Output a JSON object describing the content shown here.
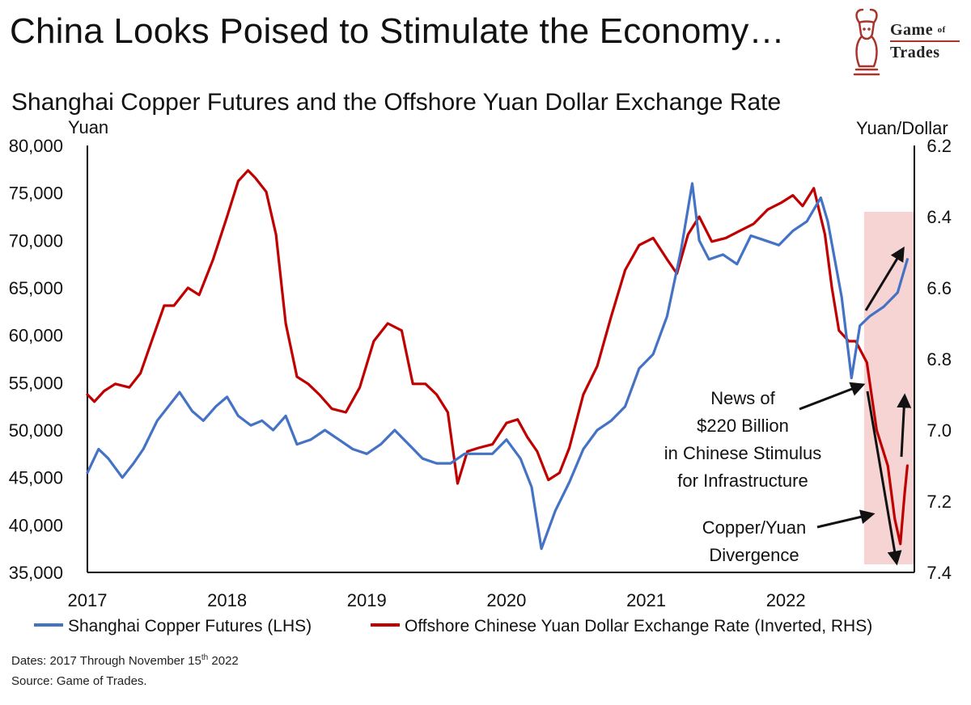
{
  "header": {
    "title": "China Looks Poised to Stimulate the Economy…",
    "logo_line1": "Game",
    "logo_of": "of",
    "logo_line2": "Trades"
  },
  "chart_data": {
    "type": "line",
    "title": "Shanghai Copper Futures and the Offshore Yuan Dollar Exchange Rate",
    "left_axis": {
      "label": "Yuan",
      "range": [
        35000,
        80000
      ],
      "ticks": [
        "80,000",
        "75,000",
        "70,000",
        "65,000",
        "60,000",
        "55,000",
        "50,000",
        "45,000",
        "40,000",
        "35,000"
      ]
    },
    "right_axis": {
      "label": "Yuan/Dollar",
      "range": [
        6.2,
        7.4
      ],
      "inverted": true,
      "ticks": [
        "6.2",
        "6.4",
        "6.6",
        "6.8",
        "7.0",
        "7.2",
        "7.4"
      ]
    },
    "x_axis": {
      "range": [
        2017.0,
        2022.92
      ],
      "ticks": [
        "2017",
        "2018",
        "2019",
        "2020",
        "2021",
        "2022"
      ]
    },
    "grid": false,
    "legend_position": "bottom",
    "series": [
      {
        "name": "Shanghai Copper Futures (LHS)",
        "axis": "left",
        "color": "#4472c4",
        "x": [
          2017.0,
          2017.08,
          2017.15,
          2017.25,
          2017.33,
          2017.4,
          2017.5,
          2017.58,
          2017.66,
          2017.75,
          2017.83,
          2017.92,
          2018.0,
          2018.08,
          2018.17,
          2018.25,
          2018.33,
          2018.42,
          2018.5,
          2018.6,
          2018.7,
          2018.8,
          2018.9,
          2019.0,
          2019.1,
          2019.2,
          2019.3,
          2019.4,
          2019.5,
          2019.6,
          2019.7,
          2019.8,
          2019.9,
          2020.0,
          2020.1,
          2020.18,
          2020.25,
          2020.35,
          2020.45,
          2020.55,
          2020.65,
          2020.75,
          2020.85,
          2020.95,
          2021.05,
          2021.15,
          2021.25,
          2021.33,
          2021.38,
          2021.45,
          2021.55,
          2021.65,
          2021.75,
          2021.85,
          2021.95,
          2022.05,
          2022.15,
          2022.25,
          2022.3,
          2022.4,
          2022.47,
          2022.53,
          2022.6,
          2022.7,
          2022.8,
          2022.87
        ],
        "values": [
          45500,
          48000,
          47000,
          45000,
          46500,
          48000,
          51000,
          52500,
          54000,
          52000,
          51000,
          52500,
          53500,
          51500,
          50500,
          51000,
          50000,
          51500,
          48500,
          49000,
          50000,
          49000,
          48000,
          47500,
          48500,
          50000,
          48500,
          47000,
          46500,
          46500,
          47500,
          47500,
          47500,
          49000,
          47000,
          44000,
          37500,
          41500,
          44500,
          48000,
          50000,
          51000,
          52500,
          56500,
          58000,
          62000,
          69000,
          76000,
          70000,
          68000,
          68500,
          67500,
          70500,
          70000,
          69500,
          71000,
          72000,
          74500,
          72000,
          64000,
          55500,
          61000,
          62000,
          63000,
          64500,
          68000
        ]
      },
      {
        "name": "Offshore Chinese Yuan Dollar Exchange Rate (Inverted, RHS)",
        "axis": "right",
        "color": "#c00000",
        "x": [
          2017.0,
          2017.05,
          2017.12,
          2017.2,
          2017.3,
          2017.38,
          2017.46,
          2017.55,
          2017.62,
          2017.72,
          2017.8,
          2017.9,
          2018.0,
          2018.08,
          2018.15,
          2018.2,
          2018.28,
          2018.35,
          2018.42,
          2018.5,
          2018.58,
          2018.66,
          2018.75,
          2018.85,
          2018.95,
          2019.05,
          2019.15,
          2019.25,
          2019.33,
          2019.42,
          2019.5,
          2019.58,
          2019.65,
          2019.72,
          2019.8,
          2019.9,
          2020.0,
          2020.08,
          2020.15,
          2020.22,
          2020.3,
          2020.38,
          2020.45,
          2020.55,
          2020.65,
          2020.75,
          2020.85,
          2020.95,
          2021.05,
          2021.15,
          2021.22,
          2021.3,
          2021.38,
          2021.47,
          2021.57,
          2021.67,
          2021.77,
          2021.87,
          2021.97,
          2022.05,
          2022.12,
          2022.2,
          2022.28,
          2022.33,
          2022.38,
          2022.45,
          2022.5,
          2022.58,
          2022.65,
          2022.73,
          2022.78,
          2022.82,
          2022.85,
          2022.87
        ],
        "values": [
          6.9,
          6.92,
          6.89,
          6.87,
          6.88,
          6.84,
          6.75,
          6.65,
          6.65,
          6.6,
          6.62,
          6.52,
          6.4,
          6.3,
          6.27,
          6.29,
          6.33,
          6.45,
          6.7,
          6.85,
          6.87,
          6.9,
          6.94,
          6.95,
          6.88,
          6.75,
          6.7,
          6.72,
          6.87,
          6.87,
          6.9,
          6.95,
          7.15,
          7.06,
          7.05,
          7.04,
          6.98,
          6.97,
          7.02,
          7.06,
          7.14,
          7.12,
          7.05,
          6.9,
          6.82,
          6.68,
          6.55,
          6.48,
          6.46,
          6.52,
          6.56,
          6.45,
          6.4,
          6.47,
          6.46,
          6.44,
          6.42,
          6.38,
          6.36,
          6.34,
          6.37,
          6.32,
          6.45,
          6.6,
          6.72,
          6.75,
          6.75,
          6.81,
          7.0,
          7.1,
          7.25,
          7.32,
          7.18,
          7.1
        ]
      }
    ],
    "annotations": [
      {
        "id": "stimulus",
        "lines": [
          "News of",
          "$220 Billion",
          "in Chinese Stimulus",
          "for Infrastructure"
        ]
      },
      {
        "id": "divergence",
        "lines": [
          "Copper/Yuan",
          "Divergence"
        ]
      }
    ],
    "highlight": {
      "x_range": [
        2022.56,
        2022.92
      ],
      "color": "#f7d4d4"
    }
  },
  "footer": {
    "dates_prefix": "Dates: 2017 Through November 15",
    "dates_sup": "th",
    "dates_suffix": " 2022",
    "source": "Source: Game of Trades."
  }
}
